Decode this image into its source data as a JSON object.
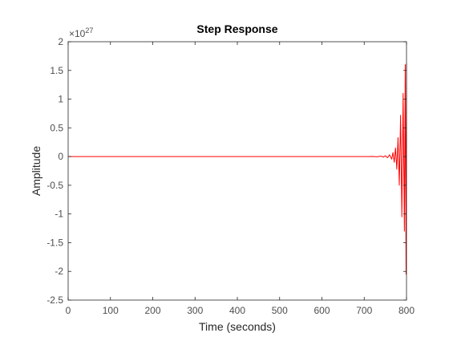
{
  "chart_data": {
    "type": "line",
    "title": "Step Response",
    "xlabel": "Time (seconds)",
    "ylabel": "Amplitude",
    "xlim": [
      0,
      800
    ],
    "ylim": [
      -2.5,
      2
    ],
    "y_scale_exponent_label": "27",
    "y_scale_multiplier_symbol": "×10",
    "xticks": [
      0,
      100,
      200,
      300,
      400,
      500,
      600,
      700,
      800
    ],
    "xtick_labels": [
      "0",
      "100",
      "200",
      "300",
      "400",
      "500",
      "600",
      "700",
      "800"
    ],
    "yticks": [
      2,
      1.5,
      1,
      0.5,
      0,
      -0.5,
      -1,
      -1.5,
      -2,
      -2.5
    ],
    "ytick_labels": [
      "2",
      "1.5",
      "1",
      "0.5",
      "0",
      "-0.5",
      "-1",
      "-1.5",
      "-2",
      "-2.5"
    ],
    "grid": false,
    "box": true,
    "series": [
      {
        "color": "#ff0000",
        "x": [
          0,
          100,
          200,
          300,
          400,
          500,
          600,
          680,
          700,
          710,
          720,
          730,
          740,
          745,
          750,
          755,
          760,
          765,
          768,
          771,
          774,
          777,
          780,
          783,
          786,
          789,
          792,
          795,
          797,
          799,
          800
        ],
        "y": [
          0,
          0,
          0,
          0,
          0,
          0,
          0,
          0,
          0.0005,
          -0.001,
          0.002,
          -0.004,
          0.006,
          -0.009,
          0.013,
          -0.02,
          0.03,
          -0.045,
          0.07,
          -0.1,
          0.15,
          -0.22,
          0.33,
          -0.5,
          0.72,
          -1.05,
          1.1,
          -1.3,
          1.6,
          -2.05,
          1.62
        ]
      }
    ]
  }
}
